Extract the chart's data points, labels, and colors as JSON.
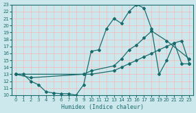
{
  "title": "",
  "xlabel": "Humidex (Indice chaleur)",
  "xlim": [
    -0.5,
    23.5
  ],
  "ylim": [
    10,
    23
  ],
  "yticks": [
    10,
    11,
    12,
    13,
    14,
    15,
    16,
    17,
    18,
    19,
    20,
    21,
    22,
    23
  ],
  "xticks": [
    0,
    1,
    2,
    3,
    4,
    5,
    6,
    7,
    8,
    9,
    10,
    11,
    12,
    13,
    14,
    15,
    16,
    17,
    18,
    19,
    20,
    21,
    22,
    23
  ],
  "bg_color": "#cce8ed",
  "grid_color": "#f0c0c0",
  "line_color": "#1a6b6b",
  "line1_x": [
    0,
    1,
    2,
    3,
    4,
    5,
    6,
    7,
    8,
    9,
    10,
    11,
    12,
    13,
    14,
    15,
    16,
    17,
    18,
    19,
    20,
    21,
    22,
    23
  ],
  "line1_y": [
    13,
    13,
    12,
    11.5,
    10.5,
    10.3,
    10.2,
    10.2,
    10.0,
    11.5,
    16.3,
    16.5,
    19.5,
    21.0,
    20.3,
    22.0,
    23.0,
    22.5,
    19.5,
    13.0,
    15.0,
    17.5,
    14.5,
    14.5
  ],
  "line2_x": [
    0,
    2,
    9,
    10,
    13,
    14,
    15,
    16,
    17,
    18,
    19,
    20,
    21,
    22,
    23
  ],
  "line2_y": [
    13,
    12.5,
    13.0,
    13.0,
    13.5,
    14.0,
    14.5,
    15.0,
    15.5,
    16.0,
    16.5,
    17.0,
    17.5,
    17.8,
    14.5
  ],
  "line3_x": [
    0,
    9,
    10,
    13,
    14,
    15,
    16,
    17,
    18,
    20,
    23
  ],
  "line3_y": [
    13.0,
    13.0,
    13.5,
    14.2,
    15.2,
    16.5,
    17.2,
    18.2,
    19.2,
    17.8,
    15.2
  ]
}
